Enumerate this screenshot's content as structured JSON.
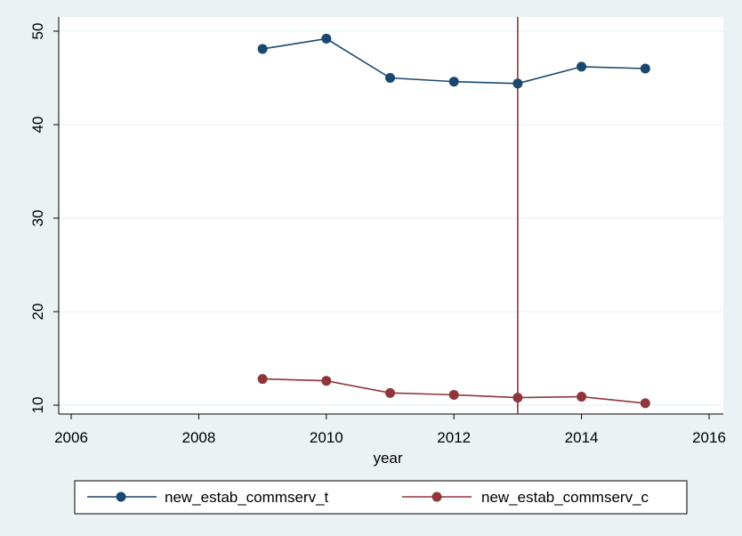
{
  "chart_data": {
    "type": "line",
    "title": "",
    "xlabel": "year",
    "ylabel": "",
    "xlim": [
      2006,
      2016
    ],
    "ylim": [
      10,
      50
    ],
    "x_ticks": [
      "2006",
      "2008",
      "2010",
      "2012",
      "2014",
      "2016"
    ],
    "y_ticks": [
      "10",
      "20",
      "30",
      "40",
      "50"
    ],
    "grid": true,
    "legend_position": "bottom",
    "vertical_reference_line": {
      "x": 2013,
      "color": "#90353b"
    },
    "x": [
      2009,
      2010,
      2011,
      2012,
      2013,
      2014,
      2015
    ],
    "series": [
      {
        "name": "new_estab_commserv_t",
        "color": "#1a476f",
        "values": [
          48.1,
          49.2,
          45.0,
          44.6,
          44.4,
          46.2,
          46.0
        ]
      },
      {
        "name": "new_estab_commserv_c",
        "color": "#90353b",
        "values": [
          12.8,
          12.6,
          11.3,
          11.1,
          10.8,
          10.9,
          10.2
        ]
      }
    ]
  }
}
